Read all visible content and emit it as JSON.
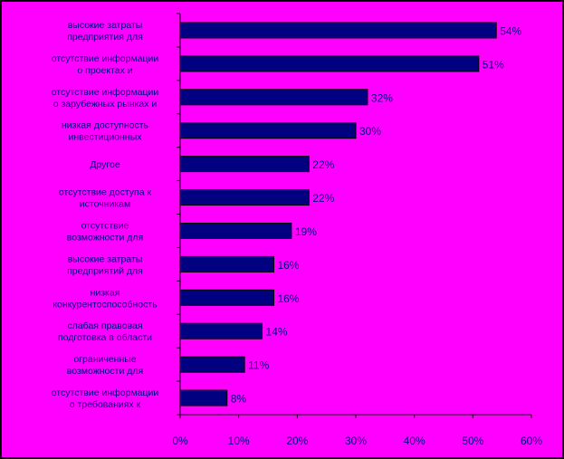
{
  "colors": {
    "background": "#ff00ff",
    "outer": "#000000",
    "bar": "#000080",
    "bar_edge": "#000000",
    "text": "#000080",
    "axis": "#000000"
  },
  "chart_data": {
    "type": "bar",
    "orientation": "horizontal",
    "title": "",
    "xlabel": "",
    "ylabel": "",
    "xlim": [
      0,
      60
    ],
    "x_ticks": [
      "0%",
      "10%",
      "20%",
      "30%",
      "40%",
      "50%",
      "60%"
    ],
    "grid": false,
    "legend": "none",
    "categories": [
      [
        "высокие затраты",
        "предприятия для"
      ],
      [
        "отсутствие информации",
        "о проектах и"
      ],
      [
        "отсутствие информации",
        "о зарубежных рынках и"
      ],
      [
        "низкая доступность",
        "инвестиционных"
      ],
      [
        "Другое"
      ],
      [
        "отсутствие доступа к",
        "источникам"
      ],
      [
        "отсутствие",
        "возможности для"
      ],
      [
        "высокие затраты",
        "предприятий для"
      ],
      [
        "низкая",
        "конкурентоспособность"
      ],
      [
        "слабая правовая",
        "подготовка в области"
      ],
      [
        "ограниченные",
        "возможности для"
      ],
      [
        "отсутствие информации",
        "о требованиях к"
      ]
    ],
    "values": [
      54,
      51,
      32,
      30,
      22,
      22,
      19,
      16,
      16,
      14,
      11,
      8
    ],
    "value_labels": [
      "54%",
      "51%",
      "32%",
      "30%",
      "22%",
      "22%",
      "19%",
      "16%",
      "16%",
      "14%",
      "11%",
      "8%"
    ]
  }
}
